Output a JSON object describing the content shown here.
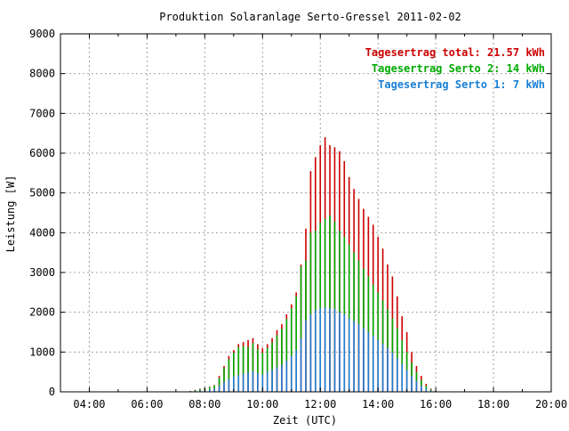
{
  "chart_data": {
    "type": "bar",
    "title": "Produktion Solaranlage Serto-Gressel 2011-02-02",
    "xlabel": "Zeit (UTC)",
    "ylabel": "Leistung [W]",
    "xlim": [
      3.0,
      20.0
    ],
    "ylim": [
      0,
      9000
    ],
    "x_ticks": [
      4,
      6,
      8,
      10,
      12,
      14,
      16,
      18,
      20
    ],
    "x_tick_labels": [
      "04:00",
      "06:00",
      "08:00",
      "10:00",
      "12:00",
      "14:00",
      "16:00",
      "18:00",
      "20:00"
    ],
    "y_ticks": [
      0,
      1000,
      2000,
      3000,
      4000,
      5000,
      6000,
      7000,
      8000,
      9000
    ],
    "y_tick_labels": [
      "0",
      "1000",
      "2000",
      "3000",
      "4000",
      "5000",
      "6000",
      "7000",
      "8000",
      "9000"
    ],
    "grid": true,
    "legend_position": "top-right",
    "legend": [
      {
        "text": "Tagesertrag total: 21.57 kWh",
        "color": "#cc0000"
      },
      {
        "text": "Tagesertrag Serto 2: 14 kWh",
        "color": "#00aa00"
      },
      {
        "text": "Tagesertrag Serto 1: 7 kWh",
        "color": "#1a7fd4"
      }
    ],
    "x": [
      7.5,
      7.667,
      7.833,
      8.0,
      8.167,
      8.333,
      8.5,
      8.667,
      8.833,
      9.0,
      9.167,
      9.333,
      9.5,
      9.667,
      9.833,
      10.0,
      10.167,
      10.333,
      10.5,
      10.667,
      10.833,
      11.0,
      11.167,
      11.333,
      11.5,
      11.667,
      11.833,
      12.0,
      12.167,
      12.333,
      12.5,
      12.667,
      12.833,
      13.0,
      13.167,
      13.333,
      13.5,
      13.667,
      13.833,
      14.0,
      14.167,
      14.333,
      14.5,
      14.667,
      14.833,
      15.0,
      15.167,
      15.333,
      15.5,
      15.667,
      15.833,
      16.0
    ],
    "series": [
      {
        "name": "Serto 1",
        "color": "#1a7fd4",
        "values": [
          10,
          20,
          30,
          40,
          60,
          80,
          150,
          250,
          320,
          380,
          420,
          450,
          480,
          520,
          470,
          430,
          500,
          560,
          620,
          680,
          780,
          900,
          1050,
          1350,
          1800,
          1950,
          2050,
          2100,
          2120,
          2100,
          2080,
          2000,
          1950,
          1850,
          1780,
          1700,
          1600,
          1500,
          1400,
          1300,
          1200,
          1100,
          980,
          850,
          700,
          550,
          400,
          270,
          150,
          80,
          30,
          10
        ]
      },
      {
        "name": "Serto 2",
        "color": "#00aa00",
        "values": [
          10,
          20,
          40,
          50,
          60,
          80,
          200,
          350,
          500,
          600,
          700,
          700,
          650,
          700,
          600,
          550,
          600,
          680,
          800,
          900,
          1050,
          1200,
          1350,
          1800,
          1500,
          2050,
          2000,
          2150,
          2230,
          2330,
          2200,
          2050,
          1950,
          1850,
          1720,
          1600,
          1500,
          1400,
          1300,
          1200,
          1100,
          980,
          870,
          750,
          600,
          450,
          330,
          230,
          150,
          70,
          30,
          10
        ]
      }
    ],
    "total": [
      20,
      50,
      80,
      100,
      130,
      170,
      400,
      650,
      900,
      1050,
      1200,
      1250,
      1300,
      1350,
      1200,
      1100,
      1200,
      1350,
      1550,
      1700,
      1950,
      2200,
      2500,
      3200,
      4100,
      5550,
      5900,
      6200,
      6400,
      6200,
      6150,
      6050,
      5800,
      5400,
      5100,
      4850,
      4600,
      4400,
      4200,
      3900,
      3600,
      3200,
      2900,
      2400,
      1900,
      1500,
      1000,
      650,
      400,
      200,
      80,
      20
    ]
  }
}
